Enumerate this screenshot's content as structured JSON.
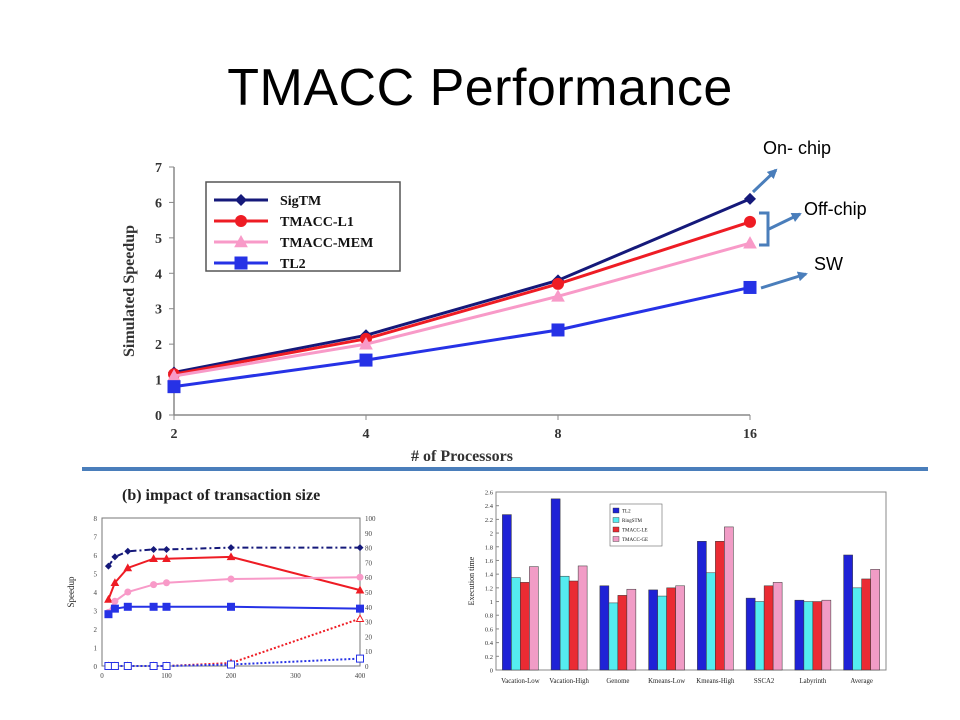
{
  "slide": {
    "title": "TMACC Performance",
    "callouts": [
      "On- chip",
      "Off-chip",
      "SW"
    ]
  },
  "colors": {
    "sigtm": "#15197a",
    "tmacc_l1": "#ee1c24",
    "tmacc_mem": "#f89ac8",
    "tl2": "#2632e6",
    "arrow": "#4a7ebb",
    "divider": "#4a7ebb",
    "bar_tl2": "#1f22d6",
    "bar_ringstm": "#55ecf0",
    "bar_tmacc_le": "#ea2b33",
    "bar_tmacc_ge": "#f19cc6"
  },
  "chart_data": [
    {
      "type": "line",
      "title": "",
      "xlabel": "# of Processors",
      "ylabel": "Simulated Speedup",
      "x": [
        "2",
        "4",
        "8",
        "16"
      ],
      "xscale": "log2",
      "ylim": [
        0,
        7
      ],
      "yticks": [
        "0",
        "1",
        "2",
        "3",
        "4",
        "5",
        "6",
        "7"
      ],
      "legend_position": "top-left",
      "series": [
        {
          "name": "SigTM",
          "marker": "diamond",
          "values": [
            1.2,
            2.25,
            3.8,
            6.1
          ]
        },
        {
          "name": "TMACC-L1",
          "marker": "circle",
          "values": [
            1.15,
            2.15,
            3.7,
            5.45
          ]
        },
        {
          "name": "TMACC-MEM",
          "marker": "triangle",
          "values": [
            1.1,
            2.0,
            3.35,
            4.85
          ]
        },
        {
          "name": "TL2",
          "marker": "square",
          "values": [
            0.8,
            1.55,
            2.4,
            3.6
          ]
        }
      ]
    },
    {
      "type": "line",
      "title": "(b) impact of transaction size",
      "xlabel": "",
      "ylabel": "Speedup",
      "xlim": [
        0,
        400
      ],
      "xticks": [
        "0",
        "100",
        "200",
        "300",
        "400"
      ],
      "ylim": [
        0,
        8
      ],
      "yticks": [
        "0",
        "1",
        "2",
        "3",
        "4",
        "5",
        "6",
        "7",
        "8"
      ],
      "y2lim": [
        0,
        100
      ],
      "y2ticks": [
        "0",
        "10",
        "20",
        "30",
        "40",
        "50",
        "60",
        "70",
        "80",
        "90",
        "100"
      ],
      "x": [
        10,
        20,
        40,
        80,
        100,
        200,
        400
      ],
      "series": [
        {
          "axis": "left",
          "style": "dashdot",
          "marker": "diamond",
          "values": [
            5.4,
            5.9,
            6.2,
            6.3,
            6.3,
            6.4,
            6.4
          ]
        },
        {
          "axis": "left",
          "style": "solid",
          "marker": "triangle",
          "values": [
            3.6,
            4.5,
            5.3,
            5.8,
            5.8,
            5.9,
            4.1
          ]
        },
        {
          "axis": "left",
          "style": "solid",
          "marker": "circle",
          "values": [
            2.9,
            3.5,
            4.0,
            4.4,
            4.5,
            4.7,
            4.8
          ]
        },
        {
          "axis": "left",
          "style": "solid",
          "marker": "square",
          "values": [
            2.8,
            3.1,
            3.2,
            3.2,
            3.2,
            3.2,
            3.1
          ]
        },
        {
          "axis": "right",
          "style": "dotted",
          "marker": "open-triangle",
          "values": [
            0,
            0,
            0,
            0,
            0,
            2,
            32
          ]
        },
        {
          "axis": "right",
          "style": "dotted",
          "marker": "open-square",
          "values": [
            0,
            0,
            0,
            0,
            0,
            1,
            5
          ]
        }
      ]
    },
    {
      "type": "bar",
      "title": "",
      "xlabel": "",
      "ylabel": "Execution time",
      "ylim": [
        0,
        2.6
      ],
      "yticks": [
        "0",
        "0.2",
        "0.4",
        "0.6",
        "0.8",
        "1",
        "1.2",
        "1.4",
        "1.6",
        "1.8",
        "2",
        "2.2",
        "2.4",
        "2.6"
      ],
      "legend_position": "top-left",
      "categories": [
        "Vacation-Low",
        "Vacation-High",
        "Genome",
        "Kmeans-Low",
        "Kmeans-High",
        "SSCA2",
        "Labyrinth",
        "Average"
      ],
      "series": [
        {
          "name": "TL2",
          "values": [
            2.27,
            2.5,
            1.23,
            1.17,
            1.88,
            1.05,
            1.02,
            1.68
          ]
        },
        {
          "name": "RingSTM",
          "values": [
            1.35,
            1.37,
            0.98,
            1.08,
            1.42,
            1.0,
            1.0,
            1.2
          ]
        },
        {
          "name": "TMACC-LE",
          "values": [
            1.28,
            1.3,
            1.09,
            1.2,
            1.88,
            1.23,
            1.0,
            1.33
          ]
        },
        {
          "name": "TMACC-GE",
          "values": [
            1.51,
            1.52,
            1.18,
            1.23,
            2.09,
            1.28,
            1.02,
            1.47
          ]
        }
      ]
    }
  ]
}
